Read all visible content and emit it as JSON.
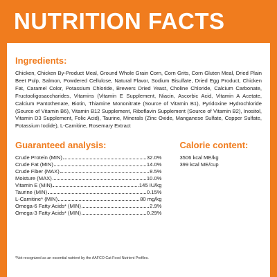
{
  "header": {
    "title": "NUTRITION FACTS"
  },
  "ingredients": {
    "heading": "Ingredients:",
    "text": "Chicken, Chicken By-Product Meal, Ground Whole Grain Corn, Corn Grits, Corn Gluten Meal, Dried Plain Beet Pulp, Salmon, Powdered Cellulose, Natural Flavor, Sodium Bisulfate, Dried Egg Product, Chicken Fat, Caramel Color, Potassium Chloride, Brewers Dried Yeast, Choline Chloride, Calcium Carbonate, Fructooligosaccharides, Vitamins (Vitamin E Supplement, Niacin, Ascorbic Acid, Vitamin A Acetate, Calcium Pantothenate, Biotin, Thiamine Mononitrate (Source of Vitamin B1), Pyridoxine Hydrochloride (Source of Vitamin B6), Vitamin B12 Supplement, Riboflavin Supplement (Source of Vitamin B2), Inositol, Vitamin D3 Supplement, Folic Acid), Taurine, Minerals (Zinc Oxide, Manganese Sulfate, Copper Sulfate, Potassium Iodide), L-Carnitine, Rosemary Extract"
  },
  "guaranteed_analysis": {
    "heading": "Guaranteed analysis:",
    "rows": [
      {
        "label": "Crude Protein (MIN)",
        "value": "32.0%"
      },
      {
        "label": "Crude Fat (MIN)",
        "value": "14.0%"
      },
      {
        "label": "Crude Fiber (MAX)",
        "value": "8.5%"
      },
      {
        "label": "Moisture (MAX)",
        "value": "10.0%"
      },
      {
        "label": "Vitamin E (MIN)",
        "value": "145 IU/kg"
      },
      {
        "label": "Taurine (MIN)",
        "value": "0.15%"
      },
      {
        "label": "L-Carnitine* (MIN)",
        "value": "80 mg/kg"
      },
      {
        "label": "Omega-6 Fatty Acids* (MIN)",
        "value": "2.9%"
      },
      {
        "label": "Omega-3 Fatty Acids* (MIN)",
        "value": "0.29%"
      }
    ]
  },
  "calorie_content": {
    "heading": "Calorie content:",
    "lines": [
      "3506 kcal ME/kg",
      "399 kcal ME/cup"
    ]
  },
  "footnote": "*Not recognized as an essential nutrient by the AAFCO Cat Food Nutrient Profiles.",
  "colors": {
    "accent": "#f07c1e",
    "text": "#222222",
    "background": "#ffffff"
  }
}
